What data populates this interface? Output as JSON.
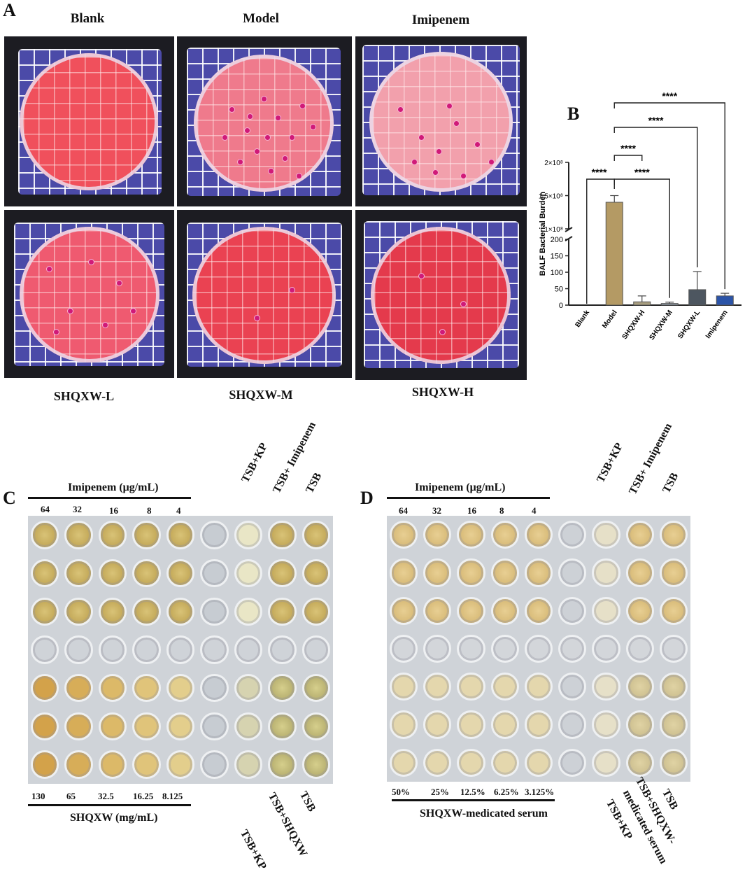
{
  "panels": {
    "A": "A",
    "B": "B",
    "C": "C",
    "D": "D"
  },
  "panel_a": {
    "top_titles": [
      "Blank",
      "Model",
      "Imipenem"
    ],
    "bottom_labels": [
      "SHQXW-L",
      "SHQXW-M",
      "SHQXW-H"
    ]
  },
  "chart_data": {
    "type": "bar",
    "ylabel": "BALF Bacterial Burden",
    "categories": [
      "Blank",
      "Model",
      "SHQXW-H",
      "SHQXW-M",
      "SHQXW-L",
      "Imipenem"
    ],
    "values": [
      0,
      140000000,
      10,
      5,
      47,
      28
    ],
    "error": [
      0,
      10000000,
      18,
      4,
      55,
      8
    ],
    "colors": [
      "#b8a46a",
      "#b49a64",
      "#a89e80",
      "#8e9ca6",
      "#4d5660",
      "#2b54a8"
    ],
    "y_axis": {
      "broken": true,
      "lower_range": [
        0,
        200
      ],
      "lower_ticks": [
        "0",
        "50",
        "100",
        "150",
        "200"
      ],
      "upper_range": [
        100000000,
        200000000
      ],
      "upper_ticks": [
        "1×10⁸",
        "1.5×10⁸",
        "2×10⁸"
      ]
    },
    "significance": [
      "****",
      "****",
      "****",
      "****",
      "****"
    ]
  },
  "panel_c": {
    "top_label": "Imipenem (μg/mL)",
    "top_values": [
      "64",
      "32",
      "16",
      "8",
      "4"
    ],
    "top_rotated": [
      "TSB+KP",
      "TSB+ Imipenem",
      "TSB"
    ],
    "bottom_values": [
      "130",
      "65",
      "32.5",
      "16.25",
      "8.125"
    ],
    "bottom_label": "SHQXW (mg/mL)",
    "bottom_rotated": [
      "TSB+KP",
      "TSB+SHQXW",
      "TSB"
    ]
  },
  "panel_d": {
    "top_label": "Imipenem (μg/mL)",
    "top_values": [
      "64",
      "32",
      "16",
      "8",
      "4"
    ],
    "top_rotated": [
      "TSB+KP",
      "TSB+ Imipenem",
      "TSB"
    ],
    "bottom_values": [
      "50%",
      "25%",
      "12.5%",
      "6.25%",
      "3.125%"
    ],
    "bottom_label": "SHQXW-medicated serum",
    "bottom_rotated_1": "TSB+KP",
    "bottom_rotated_2a": "TSB+SHQXW-",
    "bottom_rotated_2b": "medicated serum",
    "bottom_rotated_3": "TSB"
  }
}
